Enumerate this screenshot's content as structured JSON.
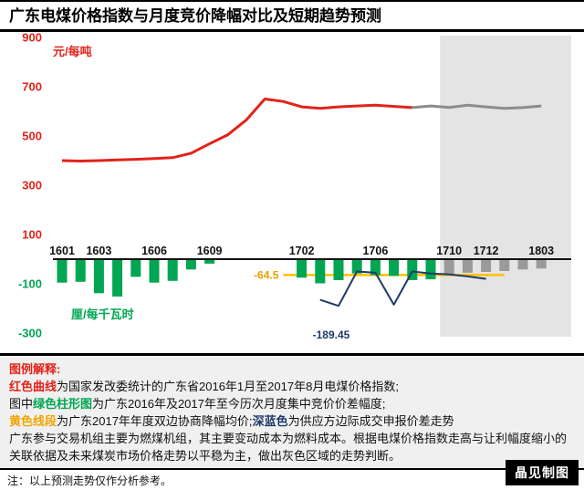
{
  "title": "广东电煤价格指数与月度竞价降幅对比及短期趋势预测",
  "colors": {
    "red": "#e2231a",
    "green": "#00a651",
    "gray": "#8c8c8c",
    "bar_gray": "#9a9a9a",
    "yellow": "#ffc000",
    "yellow_label": "#e8a000",
    "navy": "#1f3a68",
    "forecast_bg": "#e4e4e4"
  },
  "chart_data": {
    "type": "combo (bar + line)",
    "title": "广东电煤价格指数与月度竞价降幅对比及短期趋势预测",
    "months": [
      "1601",
      "1602",
      "1603",
      "1604",
      "1605",
      "1606",
      "1607",
      "1608",
      "1609",
      "1610",
      "1611",
      "1612",
      "1701",
      "1702",
      "1703",
      "1704",
      "1705",
      "1706",
      "1707",
      "1708",
      "1709",
      "1710",
      "1711",
      "1712",
      "1801",
      "1802",
      "1803"
    ],
    "x_tick_labels": [
      "1601",
      "1603",
      "1606",
      "1609",
      "1702",
      "1706",
      "1710",
      "1712",
      "1803"
    ],
    "y_ticks": [
      900,
      700,
      500,
      300,
      100,
      -100,
      -300
    ],
    "y_range": [
      -300,
      900
    ],
    "y_unit_top": "元/每吨",
    "y_unit_bottom": "厘/每千瓦时",
    "forecast_from": "1710",
    "bars": [
      {
        "month": "1601",
        "value": -95,
        "phase": "actual"
      },
      {
        "month": "1602",
        "value": -92,
        "phase": "actual"
      },
      {
        "month": "1603",
        "value": -138,
        "phase": "actual"
      },
      {
        "month": "1604",
        "value": -152,
        "phase": "actual"
      },
      {
        "month": "1605",
        "value": -72,
        "phase": "actual"
      },
      {
        "month": "1606",
        "value": -95,
        "phase": "actual"
      },
      {
        "month": "1607",
        "value": -88,
        "phase": "actual"
      },
      {
        "month": "1608",
        "value": -42,
        "phase": "actual"
      },
      {
        "month": "1609",
        "value": -18,
        "phase": "actual"
      },
      {
        "month": "1702",
        "value": -75,
        "phase": "actual"
      },
      {
        "month": "1703",
        "value": -98,
        "phase": "actual"
      },
      {
        "month": "1704",
        "value": -85,
        "phase": "actual"
      },
      {
        "month": "1705",
        "value": -58,
        "phase": "actual"
      },
      {
        "month": "1706",
        "value": -65,
        "phase": "actual"
      },
      {
        "month": "1707",
        "value": -68,
        "phase": "actual"
      },
      {
        "month": "1708",
        "value": -85,
        "phase": "actual"
      },
      {
        "month": "1709",
        "value": -82,
        "phase": "actual"
      },
      {
        "month": "1710",
        "value": -60,
        "phase": "forecast"
      },
      {
        "month": "1711",
        "value": -55,
        "phase": "forecast"
      },
      {
        "month": "1712",
        "value": -52,
        "phase": "forecast"
      },
      {
        "month": "1801",
        "value": -48,
        "phase": "forecast"
      },
      {
        "month": "1802",
        "value": -42,
        "phase": "forecast"
      },
      {
        "month": "1803",
        "value": -38,
        "phase": "forecast"
      }
    ],
    "price_index_line": {
      "name": "红色曲线:电煤价格指数",
      "months": [
        "1601",
        "1602",
        "1603",
        "1604",
        "1605",
        "1606",
        "1607",
        "1608",
        "1609",
        "1610",
        "1611",
        "1612",
        "1701",
        "1702",
        "1703",
        "1704",
        "1705",
        "1706",
        "1707",
        "1708"
      ],
      "values": [
        400,
        398,
        400,
        403,
        405,
        408,
        412,
        430,
        468,
        505,
        565,
        650,
        640,
        618,
        612,
        618,
        622,
        625,
        620,
        615
      ]
    },
    "forecast_line": {
      "name": "灰色区域走势预测",
      "months": [
        "1708",
        "1709",
        "1710",
        "1711",
        "1712",
        "1801",
        "1802",
        "1803"
      ],
      "values": [
        615,
        622,
        616,
        625,
        618,
        612,
        615,
        622
      ]
    },
    "supply_bid_line": {
      "name": "深蓝色:供应方边际成交申报价差走势",
      "months": [
        "1703",
        "1704",
        "1705",
        "1706",
        "1707",
        "1708",
        "1709",
        "1710",
        "1711",
        "1712"
      ],
      "values": [
        -165,
        -189.45,
        -50,
        -55,
        -185,
        -50,
        -58,
        -62,
        -70,
        -80
      ],
      "min_label": "-189.45"
    },
    "yellow_line": {
      "name": "黄色线段:2017年年度双边协商降幅均价",
      "value": -64.5,
      "from": "1701",
      "to": "1801",
      "label": "-64.5"
    }
  },
  "legend": {
    "heading": "图例解释:",
    "line1_key": "红色曲线",
    "line1_rest": "为国家发改委统计的广东省2016年1月至2017年8月电煤价格指数;",
    "line2_pre": "图中",
    "line2_key": "绿色柱形图",
    "line2_rest": "为广东2016年及2017年至今历次月度集中竞价价差幅度;",
    "line3_key1": "黄色线段",
    "line3_mid": "为广东2017年年度双边协商降幅均价;",
    "line3_key2": "深蓝色",
    "line3_rest": "为供应方边际成交申报价差走势",
    "para": "广东参与交易机组主要为燃煤机组，其主要变动成本为燃料成本。根据电煤价格指数走高与让利幅度缩小的关联依据及未来煤炭市场价格走势以平稳为主，做出灰色区域的走势判断。"
  },
  "footer": {
    "note": "注：以上预测走势仅作分析参考。",
    "credit": "晶见制图"
  }
}
